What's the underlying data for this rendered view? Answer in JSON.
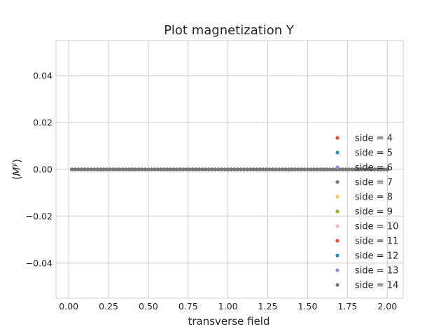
{
  "chart_data": {
    "type": "scatter",
    "title": "Plot magnetization Y",
    "xlabel": "transverse field",
    "ylabel": "⟨M^y⟩",
    "xlim": [
      -0.08,
      2.1
    ],
    "ylim": [
      -0.055,
      0.055
    ],
    "xticks": [
      0.0,
      0.25,
      0.5,
      0.75,
      1.0,
      1.25,
      1.5,
      1.75,
      2.0
    ],
    "xtick_labels": [
      "0.00",
      "0.25",
      "0.50",
      "0.75",
      "1.00",
      "1.25",
      "1.50",
      "1.75",
      "2.00"
    ],
    "yticks": [
      -0.04,
      -0.02,
      0.0,
      0.02,
      0.04
    ],
    "ytick_labels": [
      "−0.04",
      "−0.02",
      "0.00",
      "0.02",
      "0.04"
    ],
    "grid": true,
    "legend_position": "right",
    "x": {
      "start": 0.02,
      "stop": 2.0,
      "count": 100
    },
    "series": [
      {
        "name": "side = 4",
        "color": "#E24A33",
        "y_value": 0.0
      },
      {
        "name": "side = 5",
        "color": "#348ABD",
        "y_value": 0.0
      },
      {
        "name": "side = 6",
        "color": "#988ED5",
        "y_value": 0.0
      },
      {
        "name": "side = 7",
        "color": "#777777",
        "y_value": 0.0
      },
      {
        "name": "side = 8",
        "color": "#FBC15E",
        "y_value": 0.0
      },
      {
        "name": "side = 9",
        "color": "#8EBA42",
        "y_value": 0.0
      },
      {
        "name": "side = 10",
        "color": "#FFB5B8",
        "y_value": 0.0
      },
      {
        "name": "side = 11",
        "color": "#E24A33",
        "y_value": 0.0
      },
      {
        "name": "side = 12",
        "color": "#348ABD",
        "y_value": 0.0
      },
      {
        "name": "side = 13",
        "color": "#988ED5",
        "y_value": 0.0
      },
      {
        "name": "side = 14",
        "color": "#777777",
        "y_value": 0.0
      }
    ]
  }
}
